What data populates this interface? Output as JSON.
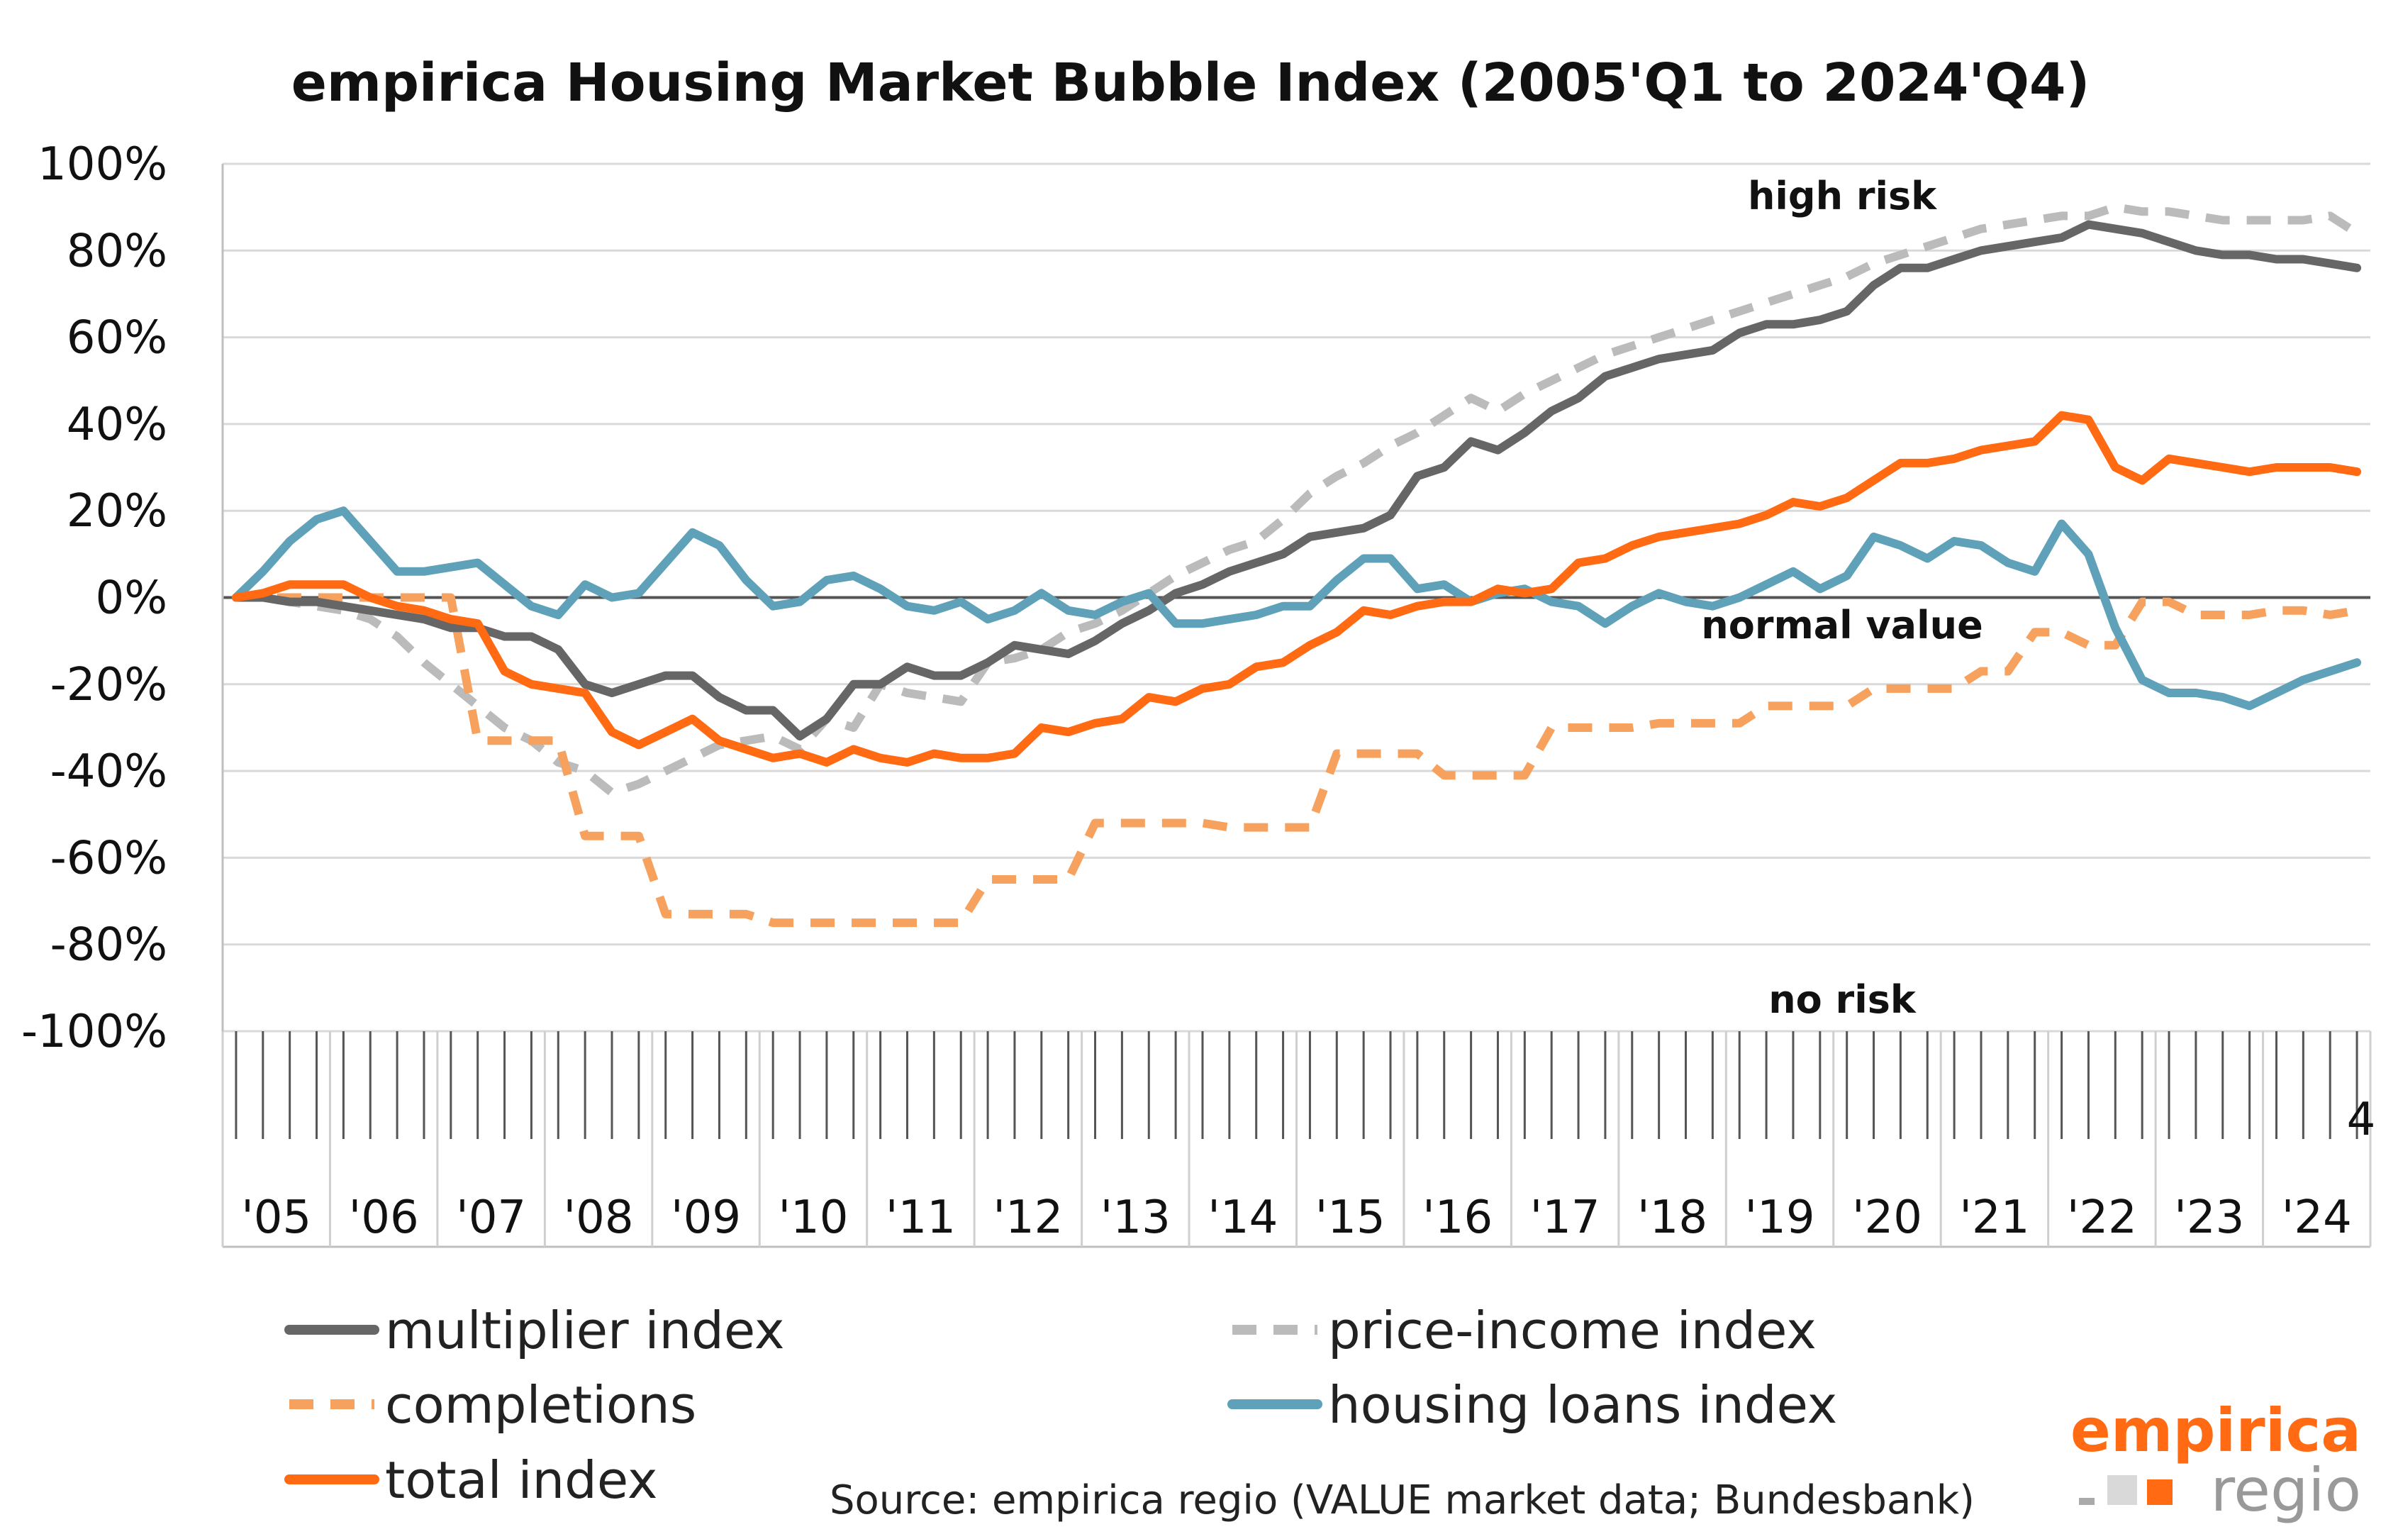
{
  "chart_data": {
    "type": "line",
    "title": "empirica Housing Market Bubble Index (2005'Q1 to 2024'Q4)",
    "ylim": [
      -100,
      100
    ],
    "y_ticks": [
      "100%",
      "80%",
      "60%",
      "40%",
      "20%",
      "0%",
      "-20%",
      "-40%",
      "-60%",
      "-80%",
      "-100%"
    ],
    "y_tick_values": [
      100,
      80,
      60,
      40,
      20,
      0,
      -20,
      -40,
      -60,
      -80,
      -100
    ],
    "x_tick_labels": [
      "'05",
      "'06",
      "'07",
      "'08",
      "'09",
      "'10",
      "'11",
      "'12",
      "'13",
      "'14",
      "'15",
      "'16",
      "'17",
      "'18",
      "'19",
      "'20",
      "'21",
      "'22",
      "'23",
      "'24"
    ],
    "x_axis_note": "4",
    "quarters_count": 80,
    "annotations": [
      "high risk",
      "normal value",
      "no risk"
    ],
    "grid": true,
    "legend_position": "bottom",
    "series": [
      {
        "name": "multiplier index",
        "color": "#666666",
        "style": "solid",
        "values": [
          0,
          0,
          -1,
          -1,
          -2,
          -3,
          -4,
          -5,
          -7,
          -7,
          -9,
          -9,
          -12,
          -20,
          -22,
          -20,
          -18,
          -18,
          -23,
          -26,
          -26,
          -32,
          -28,
          -20,
          -20,
          -16,
          -18,
          -18,
          -15,
          -11,
          -12,
          -13,
          -10,
          -6,
          -3,
          1,
          3,
          6,
          8,
          10,
          14,
          15,
          16,
          19,
          28,
          30,
          36,
          34,
          38,
          43,
          46,
          51,
          53,
          55,
          56,
          57,
          61,
          63,
          63,
          64,
          66,
          72,
          76,
          76,
          78,
          80,
          81,
          82,
          83,
          86,
          85,
          84,
          82,
          80,
          79,
          79,
          78,
          78,
          77,
          76
        ]
      },
      {
        "name": "price-income index",
        "color": "#bbbbbb",
        "style": "dashed",
        "values": [
          0,
          0,
          -1,
          -2,
          -3,
          -5,
          -9,
          -15,
          -20,
          -25,
          -30,
          -33,
          -38,
          -40,
          -45,
          -43,
          -40,
          -37,
          -34,
          -33,
          -32,
          -35,
          -28,
          -30,
          -20,
          -22,
          -23,
          -24,
          -15,
          -14,
          -12,
          -8,
          -6,
          -3,
          1,
          5,
          8,
          11,
          13,
          18,
          24,
          28,
          31,
          35,
          38,
          42,
          46,
          43,
          47,
          50,
          53,
          56,
          58,
          60,
          62,
          64,
          66,
          68,
          70,
          72,
          74,
          77,
          79,
          81,
          83,
          85,
          86,
          87,
          88,
          88,
          90,
          89,
          89,
          88,
          87,
          87,
          87,
          87,
          88,
          84
        ]
      },
      {
        "name": "completions",
        "color": "#f7a15e",
        "style": "dashed",
        "values": [
          0,
          0,
          0,
          0,
          0,
          0,
          0,
          0,
          0,
          -33,
          -33,
          -33,
          -33,
          -55,
          -55,
          -55,
          -73,
          -73,
          -73,
          -73,
          -75,
          -75,
          -75,
          -75,
          -75,
          -75,
          -75,
          -75,
          -65,
          -65,
          -65,
          -65,
          -52,
          -52,
          -52,
          -52,
          -52,
          -53,
          -53,
          -53,
          -53,
          -36,
          -36,
          -36,
          -36,
          -41,
          -41,
          -41,
          -41,
          -30,
          -30,
          -30,
          -30,
          -29,
          -29,
          -29,
          -29,
          -25,
          -25,
          -25,
          -25,
          -21,
          -21,
          -21,
          -21,
          -17,
          -17,
          -8,
          -8,
          -11,
          -11,
          -1,
          -1,
          -4,
          -4,
          -4,
          -3,
          -3,
          -4,
          -3
        ]
      },
      {
        "name": "housing loans index",
        "color": "#5ea1b8",
        "style": "solid",
        "values": [
          0,
          6,
          13,
          18,
          20,
          13,
          6,
          6,
          7,
          8,
          3,
          -2,
          -4,
          3,
          0,
          1,
          8,
          15,
          12,
          4,
          -2,
          -1,
          4,
          5,
          2,
          -2,
          -3,
          -1,
          -5,
          -3,
          1,
          -3,
          -4,
          -1,
          1,
          -6,
          -6,
          -5,
          -4,
          -2,
          -2,
          4,
          9,
          9,
          2,
          3,
          -1,
          1,
          2,
          -1,
          -2,
          -6,
          -2,
          1,
          -1,
          -2,
          0,
          3,
          6,
          2,
          5,
          14,
          12,
          9,
          13,
          12,
          8,
          6,
          17,
          10,
          -7,
          -19,
          -22,
          -22,
          -23,
          -25,
          -22,
          -19,
          -17,
          -15
        ]
      },
      {
        "name": "total index",
        "color": "#ff6a13",
        "style": "solid",
        "values": [
          0,
          1,
          3,
          3,
          3,
          0,
          -2,
          -3,
          -5,
          -6,
          -17,
          -20,
          -21,
          -22,
          -31,
          -34,
          -31,
          -28,
          -33,
          -35,
          -37,
          -36,
          -38,
          -35,
          -37,
          -38,
          -36,
          -37,
          -37,
          -36,
          -30,
          -31,
          -29,
          -28,
          -23,
          -24,
          -21,
          -20,
          -16,
          -15,
          -11,
          -8,
          -3,
          -4,
          -2,
          -1,
          -1,
          2,
          1,
          2,
          8,
          9,
          12,
          14,
          15,
          16,
          17,
          19,
          22,
          21,
          23,
          27,
          31,
          31,
          32,
          34,
          35,
          36,
          42,
          41,
          30,
          27,
          32,
          31,
          30,
          29,
          30,
          30,
          30,
          29
        ]
      }
    ]
  },
  "legend": {
    "items": [
      {
        "label": "multiplier index",
        "color": "#666666",
        "style": "solid"
      },
      {
        "label": "price-income index",
        "color": "#bbbbbb",
        "style": "dashed"
      },
      {
        "label": "completions",
        "color": "#f7a15e",
        "style": "dashed"
      },
      {
        "label": "housing loans index",
        "color": "#5ea1b8",
        "style": "solid"
      },
      {
        "label": "total index",
        "color": "#ff6a13",
        "style": "solid"
      }
    ]
  },
  "source": "Source: empirica regio (VALUE market data; Bundesbank)",
  "logo": {
    "top": "empirica",
    "bottom": "regio",
    "top_color": "#ff6a13",
    "bottom_color": "#999999"
  }
}
